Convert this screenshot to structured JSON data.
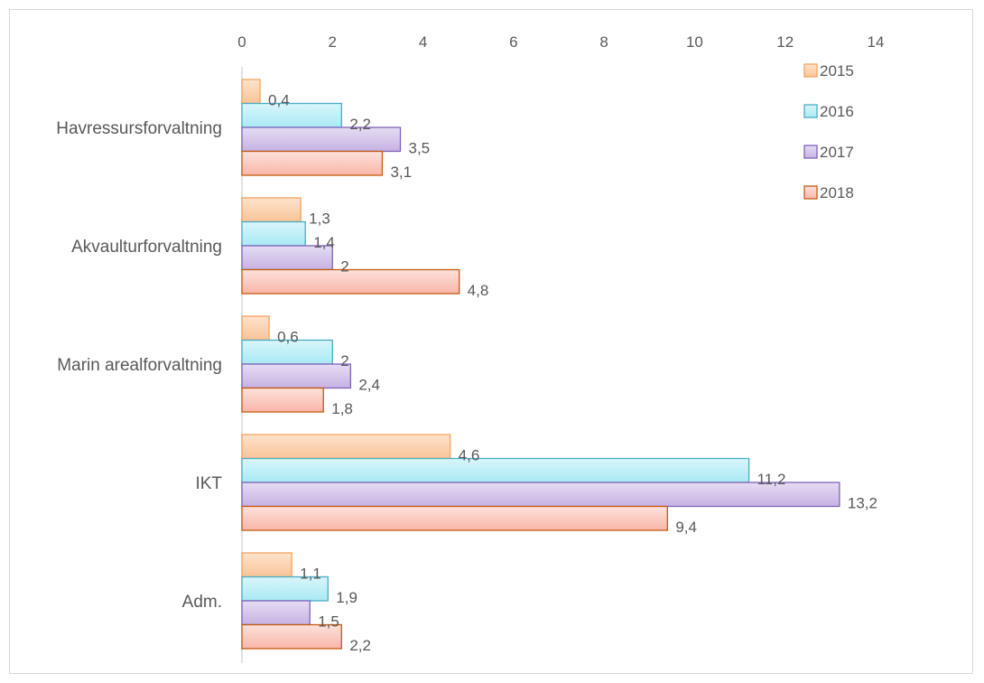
{
  "chart_data": {
    "type": "bar",
    "orientation": "horizontal",
    "categories": [
      "Havressursforvaltning",
      "Akvaulturforvaltning",
      "Marin arealforvaltning",
      "IKT",
      "Adm."
    ],
    "series": [
      {
        "name": "2015",
        "values": [
          0.4,
          1.3,
          0.6,
          4.6,
          1.1
        ],
        "labels": [
          "0,4",
          "1,3",
          "0,6",
          "4,6",
          "1,1"
        ],
        "fill_top": "#fde3cc",
        "fill_bottom": "#f9c498",
        "stroke": "#f4a460"
      },
      {
        "name": "2016",
        "values": [
          2.2,
          1.4,
          2.0,
          11.2,
          1.9
        ],
        "labels": [
          "2,2",
          "1,4",
          "2",
          "11,2",
          "1,9"
        ],
        "fill_top": "#d9f6fb",
        "fill_bottom": "#a9e9f4",
        "stroke": "#4bacc6"
      },
      {
        "name": "2017",
        "values": [
          3.5,
          2.0,
          2.4,
          13.2,
          1.5
        ],
        "labels": [
          "3,5",
          "2",
          "2,4",
          "13,2",
          "1,5"
        ],
        "fill_top": "#e6dcf3",
        "fill_bottom": "#c6b2e3",
        "stroke": "#7f63b8"
      },
      {
        "name": "2018",
        "values": [
          3.1,
          4.8,
          1.8,
          9.4,
          2.2
        ],
        "labels": [
          "3,1",
          "4,8",
          "1,8",
          "9,4",
          "2,2"
        ],
        "fill_top": "#fde1dc",
        "fill_bottom": "#f9b6a8",
        "stroke": "#c55a11"
      }
    ],
    "xlim": [
      0,
      14
    ],
    "x_ticks": [
      0,
      2,
      4,
      6,
      8,
      10,
      12,
      14
    ],
    "axis_position": "top",
    "grid": false,
    "legend_position": "top-right"
  }
}
